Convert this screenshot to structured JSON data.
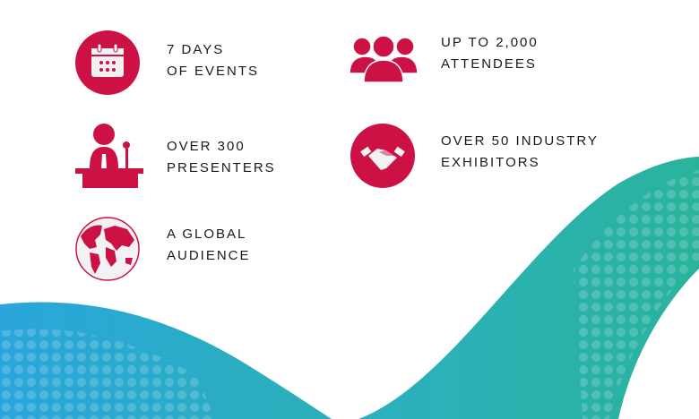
{
  "colors": {
    "accent": "#cc1245",
    "wave_left": "#2aa6dc",
    "wave_right": "#2ab39c"
  },
  "features": [
    {
      "icon": "calendar-icon",
      "line1": "7 DAYS",
      "line2": "OF EVENTS"
    },
    {
      "icon": "attendees-icon",
      "line1": "UP TO 2,000",
      "line2": "ATTENDEES"
    },
    {
      "icon": "presenter-podium-icon",
      "line1": "OVER 300",
      "line2": "PRESENTERS"
    },
    {
      "icon": "handshake-icon",
      "line1": "OVER 50 INDUSTRY",
      "line2": "EXHIBITORS"
    },
    {
      "icon": "globe-icon",
      "line1": "A GLOBAL",
      "line2": "AUDIENCE"
    }
  ]
}
